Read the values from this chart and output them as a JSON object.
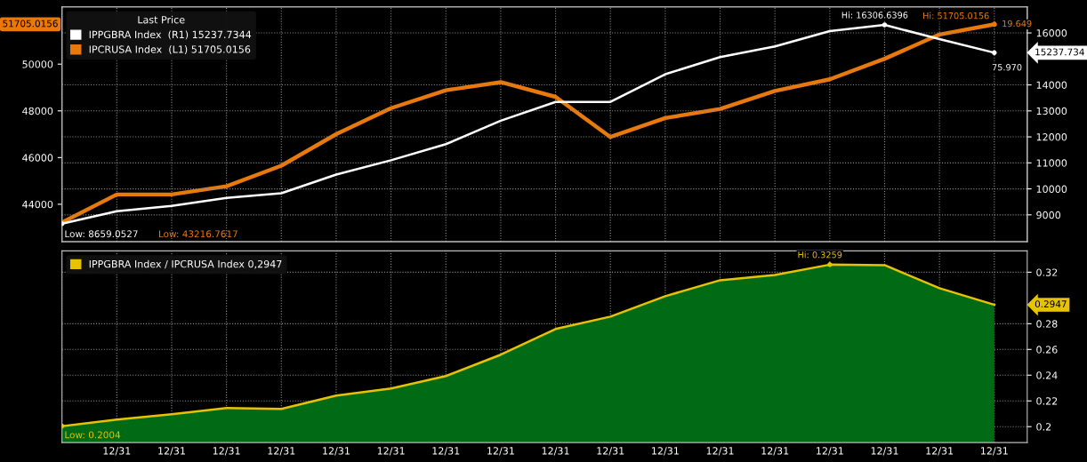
{
  "chart_data": [
    {
      "type": "line",
      "legend_title": "Last Price",
      "legend": "top left",
      "grid": true,
      "tick_labels": "y",
      "categories": [
        null,
        null,
        null,
        null,
        null,
        null,
        null,
        null,
        null,
        null,
        null,
        null,
        null,
        null,
        null,
        null,
        null,
        null
      ],
      "ylim": [
        42400,
        52450
      ],
      "yticks": [
        44000,
        46000,
        48000,
        50000
      ],
      "y2lim": [
        7970,
        17000
      ],
      "y2ticks": [
        9000,
        10000,
        11000,
        12000,
        13000,
        14000,
        16000
      ],
      "series": [
        {
          "name": "IPPGBRA Index  (R1) 15237.7344",
          "color": "#ffffff",
          "axis": "y2",
          "values": [
            8659.0527,
            9140,
            9345,
            9655,
            9830,
            10550,
            11100,
            11720,
            12620,
            13345,
            13345,
            14410,
            15070,
            15480,
            16070,
            16306.6396,
            15760,
            15237.7344
          ]
        },
        {
          "name": "IPCRUSA Index  (L1) 51705.0156",
          "color": "#e8790c",
          "values": [
            43216.7617,
            44420,
            44420,
            44770,
            45650,
            47000,
            48115,
            48880,
            49230,
            48600,
            46880,
            47690,
            48080,
            48850,
            49350,
            50230,
            51270,
            51705.0156
          ]
        }
      ],
      "annotations": [
        "Low: 8659.0527",
        "Low: 43216.7617",
        "Hi: 16306.6396",
        "Hi: 51705.0156",
        "19.649",
        "75.970",
        "51705.0156",
        "15237.734"
      ]
    },
    {
      "type": "area",
      "legend": "top left",
      "grid": true,
      "categories": [
        null,
        "12/31",
        "12/31",
        "12/31",
        "12/31",
        "12/31",
        "12/31",
        "12/31",
        "12/31",
        "12/31",
        "12/31",
        "12/31",
        "12/31",
        "12/31",
        "12/31",
        "12/31",
        "12/31",
        "12/31"
      ],
      "ylim": [
        0.1876,
        0.3366
      ],
      "yticks": [
        0.2,
        0.22,
        0.24,
        0.26,
        0.28,
        0.32
      ],
      "series": [
        {
          "color": "#006b14",
          "values": [
            0.2004,
            0.2055,
            0.2097,
            0.2145,
            0.2138,
            0.2241,
            0.2297,
            0.2393,
            0.2559,
            0.2759,
            0.2855,
            0.3014,
            0.3138,
            0.3179,
            0.3259,
            0.3255,
            0.3076,
            0.2947
          ]
        },
        {
          "name": "IPPGBRA Index / IPCRUSA Index 0,2947",
          "type": "line",
          "color": "#e6c200",
          "values": [
            0.2004,
            0.2055,
            0.2097,
            0.2145,
            0.2138,
            0.2241,
            0.2297,
            0.2393,
            0.2559,
            0.2759,
            0.2855,
            0.3014,
            0.3138,
            0.3179,
            0.3259,
            0.3255,
            0.3076,
            0.2947
          ]
        }
      ],
      "annotations": [
        "Hi: 0.3259",
        "Low: 0.2004",
        "0.2947"
      ]
    }
  ]
}
